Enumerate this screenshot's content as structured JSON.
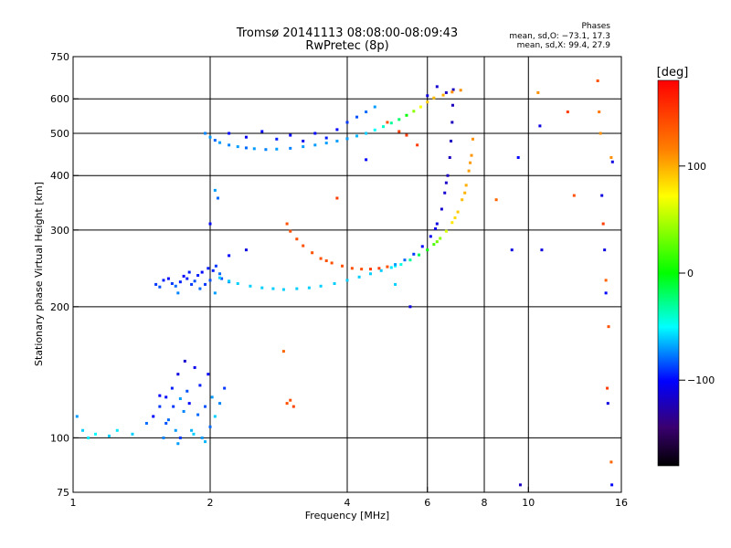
{
  "chart_data": {
    "type": "scatter",
    "title": "Tromsø 20141113 08:08:00-08:09:43",
    "subtitle": "RwPretec (8p)",
    "xlabel": "Frequency [MHz]",
    "ylabel": "Stationary phase Virtual Height [km]",
    "x_scale": "log",
    "y_scale": "log",
    "xlim": [
      1,
      16
    ],
    "ylim": [
      75,
      750
    ],
    "x_ticks": [
      {
        "value": 1,
        "label": "1"
      },
      {
        "value": 2,
        "label": "2"
      },
      {
        "value": 4,
        "label": "4"
      },
      {
        "value": 6,
        "label": "6"
      },
      {
        "value": 8,
        "label": "8"
      },
      {
        "value": 10,
        "label": "10"
      },
      {
        "value": 16,
        "label": "16"
      }
    ],
    "y_ticks": [
      {
        "value": 75,
        "label": "75"
      },
      {
        "value": 100,
        "label": "100"
      },
      {
        "value": 200,
        "label": "200"
      },
      {
        "value": 300,
        "label": "300"
      },
      {
        "value": 400,
        "label": "400"
      },
      {
        "value": 500,
        "label": "500"
      },
      {
        "value": 600,
        "label": "600"
      },
      {
        "value": 750,
        "label": "750"
      }
    ],
    "grid": true,
    "grid_x": [
      2,
      4,
      6,
      8,
      10
    ],
    "grid_y": [
      100,
      200,
      300,
      400,
      500,
      600
    ],
    "phase_stats": {
      "heading": "Phases",
      "o_line": "mean, sd,O: −73.1, 17.3",
      "x_line": "mean, sd,X:  99.4, 27.9"
    },
    "colorbar": {
      "label": "[deg]",
      "range": [
        -180,
        180
      ],
      "ticks": [
        {
          "value": 100,
          "label": "100"
        },
        {
          "value": 0,
          "label": "0"
        },
        {
          "value": -100,
          "label": "−100"
        }
      ]
    },
    "series": [
      {
        "points": [
          [
            1.02,
            112,
            -70
          ],
          [
            1.05,
            104,
            -60
          ],
          [
            1.08,
            100,
            -55
          ],
          [
            1.12,
            102,
            -50
          ],
          [
            1.2,
            101,
            -60
          ],
          [
            1.25,
            104,
            -55
          ],
          [
            1.35,
            102,
            -60
          ],
          [
            1.45,
            108,
            -80
          ],
          [
            1.5,
            112,
            -100
          ],
          [
            1.55,
            118,
            -90
          ],
          [
            1.6,
            124,
            -100
          ],
          [
            1.62,
            110,
            -80
          ],
          [
            1.65,
            130,
            -95
          ],
          [
            1.68,
            104,
            -70
          ],
          [
            1.7,
            140,
            -110
          ],
          [
            1.72,
            100,
            -90
          ],
          [
            1.75,
            115,
            -75
          ],
          [
            1.78,
            128,
            -85
          ],
          [
            1.8,
            120,
            -100
          ],
          [
            1.82,
            104,
            -65
          ],
          [
            1.85,
            145,
            -105
          ],
          [
            1.88,
            113,
            -80
          ],
          [
            1.9,
            132,
            -95
          ],
          [
            1.92,
            100,
            -70
          ],
          [
            1.95,
            118,
            -85
          ],
          [
            1.98,
            140,
            -100
          ],
          [
            2.02,
            124,
            -70
          ],
          [
            2.05,
            112,
            -60
          ],
          [
            2.1,
            120,
            -75
          ],
          [
            2.15,
            130,
            -90
          ],
          [
            1.72,
            123,
            -70
          ],
          [
            1.6,
            108,
            -85
          ],
          [
            1.55,
            125,
            -100
          ],
          [
            1.76,
            150,
            -115
          ],
          [
            1.66,
            118,
            -90
          ],
          [
            1.84,
            102,
            -60
          ],
          [
            2.0,
            106,
            -80
          ],
          [
            1.58,
            100,
            -75
          ],
          [
            1.7,
            97,
            -70
          ],
          [
            1.95,
            98,
            -65
          ]
        ]
      },
      {
        "points": [
          [
            1.52,
            225,
            -90
          ],
          [
            1.55,
            222,
            -85
          ],
          [
            1.58,
            230,
            -95
          ],
          [
            1.62,
            232,
            -100
          ],
          [
            1.65,
            226,
            -90
          ],
          [
            1.68,
            223,
            -80
          ],
          [
            1.72,
            228,
            -95
          ],
          [
            1.75,
            235,
            -100
          ],
          [
            1.78,
            232,
            -95
          ],
          [
            1.82,
            225,
            -90
          ],
          [
            1.85,
            229,
            -85
          ],
          [
            1.88,
            236,
            -95
          ],
          [
            1.92,
            240,
            -100
          ],
          [
            1.95,
            225,
            -90
          ],
          [
            2.0,
            230,
            -85
          ],
          [
            2.03,
            242,
            -95
          ],
          [
            2.06,
            248,
            -90
          ],
          [
            2.1,
            238,
            -80
          ],
          [
            2.12,
            232,
            -85
          ],
          [
            1.98,
            245,
            -95
          ],
          [
            1.9,
            220,
            -80
          ],
          [
            1.7,
            215,
            -75
          ],
          [
            2.05,
            215,
            -70
          ],
          [
            2.2,
            228,
            -75
          ],
          [
            1.8,
            240,
            -95
          ]
        ]
      },
      {
        "points": [
          [
            2.1,
            233,
            -60
          ],
          [
            2.2,
            229,
            -60
          ],
          [
            2.3,
            226,
            -60
          ],
          [
            2.45,
            223,
            -60
          ],
          [
            2.6,
            221,
            -60
          ],
          [
            2.75,
            220,
            -60
          ],
          [
            2.9,
            219,
            -60
          ],
          [
            3.1,
            220,
            -60
          ],
          [
            3.3,
            221,
            -60
          ],
          [
            3.5,
            223,
            -60
          ],
          [
            3.75,
            226,
            -60
          ],
          [
            4.0,
            230,
            -60
          ],
          [
            4.25,
            234,
            -60
          ],
          [
            4.5,
            238,
            -60
          ],
          [
            4.75,
            242,
            -60
          ],
          [
            5.0,
            246,
            -55
          ],
          [
            5.25,
            250,
            -45
          ],
          [
            5.5,
            256,
            -30
          ],
          [
            5.75,
            263,
            -15
          ],
          [
            6.0,
            270,
            0
          ],
          [
            6.2,
            278,
            20
          ],
          [
            6.4,
            287,
            40
          ],
          [
            6.6,
            298,
            60
          ],
          [
            6.8,
            312,
            80
          ],
          [
            7.0,
            330,
            90
          ],
          [
            7.15,
            352,
            95
          ],
          [
            7.3,
            380,
            100
          ],
          [
            7.4,
            410,
            105
          ],
          [
            7.5,
            445,
            108
          ],
          [
            7.55,
            485,
            110
          ],
          [
            7.25,
            365,
            98
          ],
          [
            7.45,
            428,
            106
          ],
          [
            6.9,
            320,
            85
          ],
          [
            6.3,
            282,
            30
          ],
          [
            5.1,
            248,
            -50
          ]
        ]
      },
      {
        "points": [
          [
            2.95,
            310,
            140
          ],
          [
            3.0,
            298,
            140
          ],
          [
            3.1,
            286,
            140
          ],
          [
            3.2,
            276,
            140
          ],
          [
            3.35,
            266,
            140
          ],
          [
            3.5,
            258,
            140
          ],
          [
            3.7,
            252,
            140
          ],
          [
            3.9,
            248,
            140
          ],
          [
            4.1,
            245,
            140
          ],
          [
            4.3,
            244,
            140
          ],
          [
            4.5,
            244,
            150
          ],
          [
            4.7,
            245,
            150
          ],
          [
            4.9,
            247,
            140
          ],
          [
            5.1,
            250,
            -70
          ],
          [
            5.35,
            256,
            -80
          ],
          [
            5.6,
            264,
            -90
          ],
          [
            5.85,
            275,
            -100
          ],
          [
            6.1,
            290,
            -105
          ],
          [
            6.3,
            310,
            -110
          ],
          [
            6.45,
            335,
            -115
          ],
          [
            6.55,
            365,
            -115
          ],
          [
            6.65,
            400,
            -120
          ],
          [
            6.72,
            440,
            -120
          ],
          [
            6.76,
            480,
            -120
          ],
          [
            6.8,
            530,
            -120
          ],
          [
            6.82,
            580,
            -120
          ],
          [
            6.84,
            630,
            -120
          ],
          [
            6.6,
            385,
            -118
          ],
          [
            6.25,
            302,
            -108
          ],
          [
            3.6,
            255,
            140
          ]
        ]
      },
      {
        "points": [
          [
            1.95,
            500,
            -75
          ],
          [
            2.0,
            490,
            -70
          ],
          [
            2.05,
            482,
            -80
          ],
          [
            2.1,
            476,
            -70
          ],
          [
            2.2,
            470,
            -75
          ],
          [
            2.3,
            466,
            -70
          ],
          [
            2.4,
            463,
            -80
          ],
          [
            2.5,
            461,
            -70
          ],
          [
            2.65,
            459,
            -75
          ],
          [
            2.8,
            460,
            -70
          ],
          [
            3.0,
            462,
            -75
          ],
          [
            3.2,
            466,
            -70
          ],
          [
            3.4,
            470,
            -70
          ],
          [
            3.6,
            475,
            -70
          ],
          [
            3.8,
            480,
            -70
          ],
          [
            4.0,
            486,
            -70
          ],
          [
            4.2,
            493,
            -65
          ],
          [
            4.4,
            500,
            -60
          ],
          [
            4.6,
            509,
            -50
          ],
          [
            4.8,
            518,
            -40
          ],
          [
            5.0,
            528,
            -30
          ],
          [
            5.2,
            538,
            -20
          ],
          [
            5.4,
            550,
            0
          ],
          [
            5.6,
            562,
            40
          ],
          [
            5.8,
            575,
            70
          ],
          [
            6.0,
            590,
            90
          ],
          [
            6.2,
            603,
            95
          ],
          [
            6.5,
            612,
            100
          ],
          [
            6.8,
            622,
            110
          ],
          [
            7.1,
            628,
            110
          ],
          [
            2.2,
            500,
            -100
          ],
          [
            2.4,
            490,
            -105
          ],
          [
            2.6,
            505,
            -100
          ],
          [
            2.8,
            485,
            -95
          ],
          [
            3.0,
            495,
            -100
          ],
          [
            3.2,
            480,
            -105
          ],
          [
            3.4,
            500,
            -100
          ],
          [
            3.6,
            488,
            -95
          ],
          [
            3.8,
            510,
            -100
          ],
          [
            4.0,
            530,
            -90
          ],
          [
            4.2,
            545,
            -85
          ],
          [
            4.4,
            560,
            -80
          ],
          [
            4.6,
            575,
            -70
          ],
          [
            4.9,
            530,
            140
          ],
          [
            5.2,
            505,
            150
          ],
          [
            5.4,
            495,
            150
          ],
          [
            5.7,
            470,
            150
          ],
          [
            6.0,
            610,
            -110
          ],
          [
            6.3,
            640,
            -115
          ],
          [
            6.6,
            620,
            -120
          ]
        ]
      },
      {
        "points": [
          [
            2.05,
            370,
            -70
          ],
          [
            2.08,
            355,
            -80
          ],
          [
            2.0,
            310,
            -100
          ],
          [
            2.4,
            270,
            -110
          ],
          [
            2.2,
            262,
            -100
          ],
          [
            2.9,
            158,
            130
          ],
          [
            3.0,
            122,
            140
          ],
          [
            3.05,
            118,
            145
          ],
          [
            2.95,
            120,
            140
          ],
          [
            3.8,
            355,
            150
          ],
          [
            4.4,
            435,
            -100
          ],
          [
            5.1,
            225,
            -60
          ],
          [
            5.5,
            200,
            -110
          ],
          [
            8.5,
            352,
            130
          ],
          [
            9.2,
            270,
            -110
          ],
          [
            9.5,
            440,
            -100
          ],
          [
            9.6,
            78,
            -120
          ],
          [
            10.5,
            620,
            110
          ],
          [
            10.6,
            520,
            -110
          ],
          [
            10.7,
            270,
            -110
          ],
          [
            12.2,
            560,
            150
          ],
          [
            12.6,
            360,
            140
          ],
          [
            14.2,
            660,
            140
          ],
          [
            14.3,
            560,
            120
          ],
          [
            14.4,
            500,
            110
          ],
          [
            14.5,
            360,
            -110
          ],
          [
            14.6,
            310,
            150
          ],
          [
            14.7,
            270,
            -110
          ],
          [
            14.8,
            230,
            130
          ],
          [
            14.8,
            215,
            -100
          ],
          [
            15.0,
            180,
            140
          ],
          [
            14.9,
            130,
            150
          ],
          [
            14.95,
            120,
            -110
          ],
          [
            15.2,
            440,
            110
          ],
          [
            15.3,
            430,
            -110
          ],
          [
            15.2,
            88,
            130
          ],
          [
            15.25,
            78,
            -100
          ]
        ]
      }
    ]
  }
}
